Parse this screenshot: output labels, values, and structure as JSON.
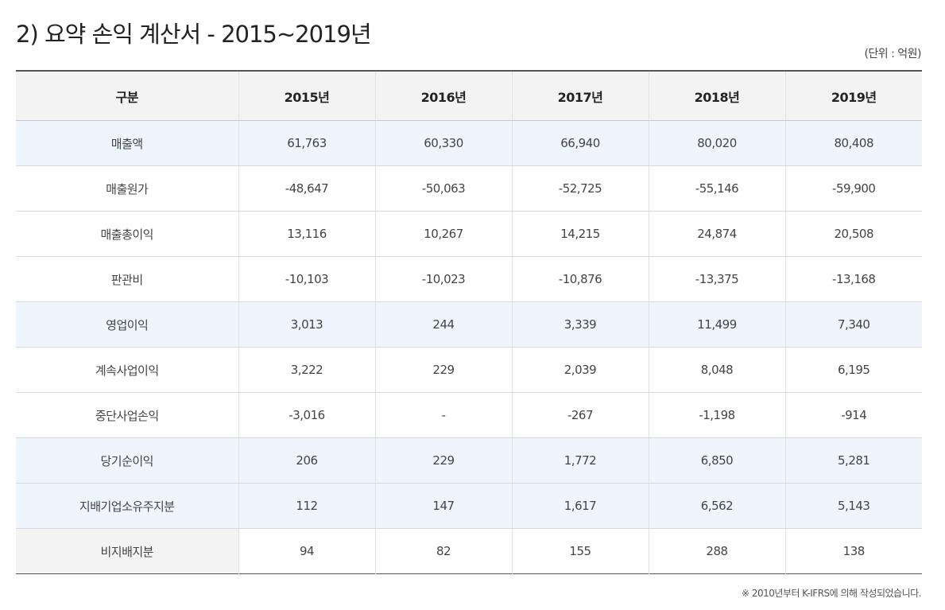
{
  "title": "2) 요약 손익 계산서 - 2015~2019년",
  "unit": "(단위 : 억원)",
  "table": {
    "headers": [
      "구분",
      "2015년",
      "2016년",
      "2017년",
      "2018년",
      "2019년"
    ],
    "rows": [
      {
        "label": "매출액",
        "values": [
          "61,763",
          "60,330",
          "66,940",
          "80,020",
          "80,408"
        ],
        "highlight": true
      },
      {
        "label": "매출원가",
        "values": [
          "-48,647",
          "-50,063",
          "-52,725",
          "-55,146",
          "-59,900"
        ],
        "highlight": false
      },
      {
        "label": "매출총이익",
        "values": [
          "13,116",
          "10,267",
          "14,215",
          "24,874",
          "20,508"
        ],
        "highlight": false
      },
      {
        "label": "판관비",
        "values": [
          "-10,103",
          "-10,023",
          "-10,876",
          "-13,375",
          "-13,168"
        ],
        "highlight": false
      },
      {
        "label": "영업이익",
        "values": [
          "3,013",
          "244",
          "3,339",
          "11,499",
          "7,340"
        ],
        "highlight": true
      },
      {
        "label": "계속사업이익",
        "values": [
          "3,222",
          "229",
          "2,039",
          "8,048",
          "6,195"
        ],
        "highlight": false
      },
      {
        "label": "중단사업손익",
        "values": [
          "-3,016",
          "-",
          "-267",
          "-1,198",
          "-914"
        ],
        "highlight": false
      },
      {
        "label": "당기순이익",
        "values": [
          "206",
          "229",
          "1,772",
          "6,850",
          "5,281"
        ],
        "highlight": true
      },
      {
        "label": "지배기업소유주지분",
        "values": [
          "112",
          "147",
          "1,617",
          "6,562",
          "5,143"
        ],
        "highlight": true
      },
      {
        "label": "비지배지분",
        "values": [
          "94",
          "82",
          "155",
          "288",
          "138"
        ],
        "highlight": false,
        "gray_label": true
      }
    ]
  },
  "note": "※ 2010년부터 K-IFRS에 의해 작성되었습니다.",
  "colors": {
    "highlight_row": "#eef5fc",
    "header_bg": "#f3f3f3"
  }
}
